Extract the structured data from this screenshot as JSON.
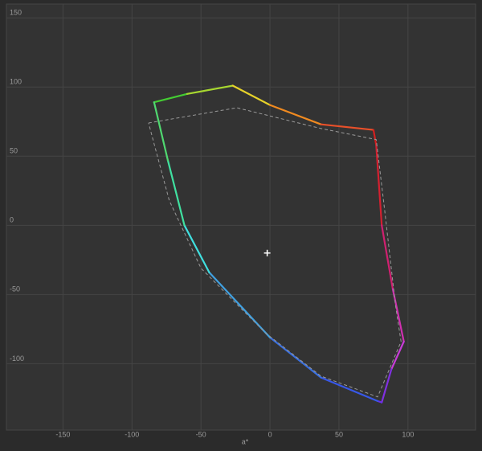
{
  "chart_data": {
    "type": "line",
    "x_label": "a*",
    "xlim": [
      -191,
      149
    ],
    "ylim": [
      -148,
      160
    ],
    "xticks": [
      -150,
      -100,
      -50,
      0,
      50,
      100
    ],
    "yticks": [
      -100,
      -50,
      0,
      50,
      100,
      150
    ],
    "grid": true,
    "series": [
      {
        "style": "solid",
        "x": [
          -84,
          -60,
          -27,
          0,
          37,
          75,
          77,
          81,
          89,
          97,
          88,
          81,
          78,
          37,
          0,
          -44,
          -62,
          -74,
          -84
        ],
        "values": [
          89,
          95,
          101,
          87,
          73,
          69,
          58,
          0,
          -46,
          -84,
          -104,
          -128,
          -127,
          -110,
          -81,
          -34,
          0,
          47,
          89
        ],
        "colors": [
          "#44cc33",
          "#a8d830",
          "#e6d22a",
          "#f08a20",
          "#e8502a",
          "#d42020",
          "#d42030",
          "#d02070",
          "#d030b0",
          "#c83cd8",
          "#8030e0",
          "#6a30e8",
          "#3858e8",
          "#3a70e0",
          "#40a0e0",
          "#40e0e0",
          "#40e0a0",
          "#50d870",
          "#44cc33"
        ]
      },
      {
        "style": "dashed",
        "color": "#9a9a9a",
        "x": [
          -88,
          -24,
          37,
          77,
          83,
          91,
          95,
          78,
          37,
          -3,
          -50,
          -73,
          -88
        ],
        "values": [
          74,
          85,
          70,
          62,
          12,
          -58,
          -84,
          -124,
          -109,
          -78,
          -31,
          18,
          74
        ]
      },
      {
        "style": "marker",
        "color": "#ffffff",
        "x": [
          -2
        ],
        "values": [
          -20
        ]
      }
    ]
  }
}
